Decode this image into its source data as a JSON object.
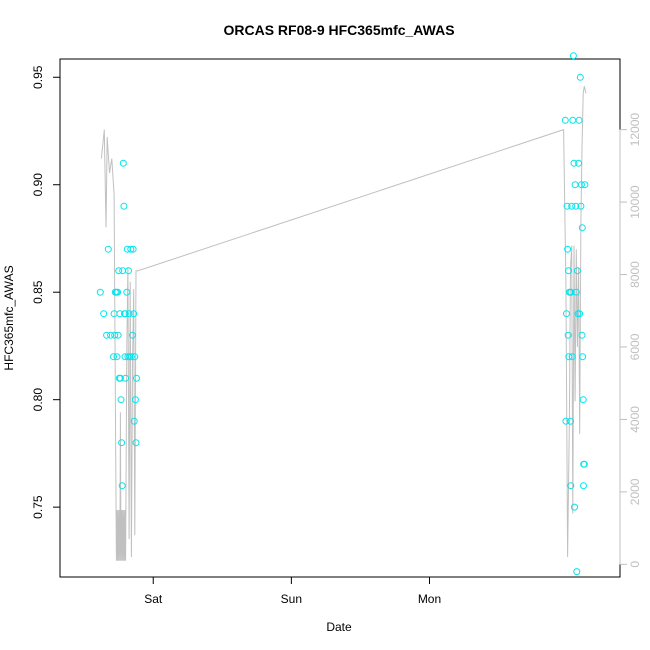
{
  "chart_data": {
    "type": "scatter",
    "title": "ORCAS RF08-9 HFC365mfc_AWAS",
    "xlabel": "Date",
    "ylabel": "HFC365mfc_AWAS",
    "x_tick_labels": [
      "Sat",
      "Sun",
      "Mon"
    ],
    "y_ticks": [
      0.75,
      0.8,
      0.85,
      0.9,
      0.95
    ],
    "y_tick_labels": [
      "0.75",
      "0.80",
      "0.85",
      "0.90",
      "0.95"
    ],
    "y_right_ticks": [
      0,
      2000,
      4000,
      6000,
      8000,
      10000,
      12000
    ],
    "y_right_tick_labels": [
      "0",
      "2000",
      "4000",
      "6000",
      "8000",
      "10000",
      "12000"
    ],
    "ylim": [
      0.7175,
      0.9585
    ],
    "y_right_lim": [
      -350,
      13950
    ],
    "xlim_hours": [
      -16.2,
      81.1
    ],
    "x_tick_hours": [
      0,
      24,
      48
    ],
    "point_color": "#00e5ee",
    "line_color": "#c0c0c0",
    "series": [
      {
        "values": [
          {
            "x": -9.2,
            "y": 0.85
          },
          {
            "x": -8.6,
            "y": 0.84
          },
          {
            "x": -8.1,
            "y": 0.83
          },
          {
            "x": -7.8,
            "y": 0.87
          },
          {
            "x": -7.4,
            "y": 0.83
          },
          {
            "x": -6.9,
            "y": 0.82
          },
          {
            "x": -6.8,
            "y": 0.84
          },
          {
            "x": -6.7,
            "y": 0.83
          },
          {
            "x": -6.6,
            "y": 0.85
          },
          {
            "x": -6.4,
            "y": 0.85
          },
          {
            "x": -6.3,
            "y": 0.82
          },
          {
            "x": -6.2,
            "y": 0.85
          },
          {
            "x": -6.1,
            "y": 0.83
          },
          {
            "x": -6.0,
            "y": 0.86
          },
          {
            "x": -5.9,
            "y": 0.81
          },
          {
            "x": -5.8,
            "y": 0.84
          },
          {
            "x": -5.7,
            "y": 0.81
          },
          {
            "x": -5.6,
            "y": 0.8
          },
          {
            "x": -5.5,
            "y": 0.78
          },
          {
            "x": -5.4,
            "y": 0.76
          },
          {
            "x": -5.3,
            "y": 0.86
          },
          {
            "x": -5.2,
            "y": 0.91
          },
          {
            "x": -5.1,
            "y": 0.89
          },
          {
            "x": -5.0,
            "y": 0.84
          },
          {
            "x": -4.9,
            "y": 0.82
          },
          {
            "x": -4.85,
            "y": 0.84
          },
          {
            "x": -4.8,
            "y": 0.81
          },
          {
            "x": -4.6,
            "y": 0.85
          },
          {
            "x": -4.5,
            "y": 0.87
          },
          {
            "x": -4.4,
            "y": 0.82
          },
          {
            "x": -4.3,
            "y": 0.86
          },
          {
            "x": -4.2,
            "y": 0.84
          },
          {
            "x": -4.1,
            "y": 0.82
          },
          {
            "x": -3.9,
            "y": 0.87
          },
          {
            "x": -3.8,
            "y": 0.82
          },
          {
            "x": -3.6,
            "y": 0.83
          },
          {
            "x": -3.5,
            "y": 0.87
          },
          {
            "x": -3.4,
            "y": 0.84
          },
          {
            "x": -3.3,
            "y": 0.79
          },
          {
            "x": -3.2,
            "y": 0.82
          },
          {
            "x": -3.1,
            "y": 0.8
          },
          {
            "x": -3.0,
            "y": 0.78
          },
          {
            "x": -2.9,
            "y": 0.81
          },
          {
            "x": 71.6,
            "y": 0.93
          },
          {
            "x": 71.7,
            "y": 0.79
          },
          {
            "x": 71.8,
            "y": 0.84
          },
          {
            "x": 71.9,
            "y": 0.89
          },
          {
            "x": 72.0,
            "y": 0.87
          },
          {
            "x": 72.1,
            "y": 0.83
          },
          {
            "x": 72.15,
            "y": 0.86
          },
          {
            "x": 72.2,
            "y": 0.82
          },
          {
            "x": 72.3,
            "y": 0.85
          },
          {
            "x": 72.4,
            "y": 0.85
          },
          {
            "x": 72.5,
            "y": 0.79
          },
          {
            "x": 72.55,
            "y": 0.76
          },
          {
            "x": 72.6,
            "y": 0.85
          },
          {
            "x": 72.7,
            "y": 0.89
          },
          {
            "x": 72.8,
            "y": 0.82
          },
          {
            "x": 72.9,
            "y": 0.93
          },
          {
            "x": 73.0,
            "y": 0.96
          },
          {
            "x": 73.1,
            "y": 0.91
          },
          {
            "x": 73.2,
            "y": 0.75
          },
          {
            "x": 73.3,
            "y": 0.9
          },
          {
            "x": 73.4,
            "y": 0.89
          },
          {
            "x": 73.5,
            "y": 0.85
          },
          {
            "x": 73.6,
            "y": 0.72
          },
          {
            "x": 73.7,
            "y": 0.86
          },
          {
            "x": 73.8,
            "y": 0.84
          },
          {
            "x": 73.9,
            "y": 0.91
          },
          {
            "x": 74.0,
            "y": 0.93
          },
          {
            "x": 74.1,
            "y": 0.84
          },
          {
            "x": 74.2,
            "y": 0.95
          },
          {
            "x": 74.3,
            "y": 0.89
          },
          {
            "x": 74.4,
            "y": 0.9
          },
          {
            "x": 74.5,
            "y": 0.83
          },
          {
            "x": 74.55,
            "y": 0.88
          },
          {
            "x": 74.6,
            "y": 0.82
          },
          {
            "x": 74.7,
            "y": 0.8
          },
          {
            "x": 74.75,
            "y": 0.76
          },
          {
            "x": 74.8,
            "y": 0.77
          },
          {
            "x": 74.9,
            "y": 0.77
          },
          {
            "x": 75.0,
            "y": 0.9
          }
        ]
      }
    ],
    "altitude_line": [
      [
        -9.0,
        11200
      ],
      [
        -8.5,
        12000
      ],
      [
        -8.2,
        9300
      ],
      [
        -8.0,
        11800
      ],
      [
        -7.6,
        10800
      ],
      [
        -7.2,
        11200
      ],
      [
        -6.8,
        10200
      ],
      [
        -6.6,
        4800
      ],
      [
        -6.4,
        100
      ],
      [
        -6.3,
        1500
      ],
      [
        -6.2,
        100
      ],
      [
        -6.1,
        1500
      ],
      [
        -6.0,
        100
      ],
      [
        -5.9,
        1500
      ],
      [
        -5.8,
        100
      ],
      [
        -5.7,
        4200
      ],
      [
        -5.6,
        100
      ],
      [
        -5.5,
        1500
      ],
      [
        -5.4,
        100
      ],
      [
        -5.3,
        1500
      ],
      [
        -5.2,
        100
      ],
      [
        -5.1,
        1500
      ],
      [
        -5.0,
        100
      ],
      [
        -4.9,
        1500
      ],
      [
        -4.8,
        100
      ],
      [
        -4.6,
        6000
      ],
      [
        -4.4,
        8200
      ],
      [
        -4.2,
        700
      ],
      [
        -4.0,
        7800
      ],
      [
        -3.8,
        200
      ],
      [
        -3.6,
        5500
      ],
      [
        -3.4,
        7600
      ],
      [
        -3.2,
        800
      ],
      [
        -3.0,
        8100
      ],
      [
        -2.7,
        8100
      ],
      [
        71.3,
        12000
      ],
      [
        71.7,
        7800
      ],
      [
        72.0,
        200
      ],
      [
        72.3,
        4000
      ],
      [
        72.5,
        8200
      ],
      [
        72.7,
        8800
      ],
      [
        72.9,
        1400
      ],
      [
        73.1,
        8800
      ],
      [
        73.3,
        4500
      ],
      [
        73.5,
        8700
      ],
      [
        73.7,
        6000
      ],
      [
        73.9,
        8200
      ],
      [
        74.1,
        3600
      ],
      [
        74.3,
        9500
      ],
      [
        74.5,
        11500
      ],
      [
        74.7,
        13000
      ],
      [
        74.9,
        13200
      ],
      [
        75.2,
        13000
      ]
    ]
  }
}
